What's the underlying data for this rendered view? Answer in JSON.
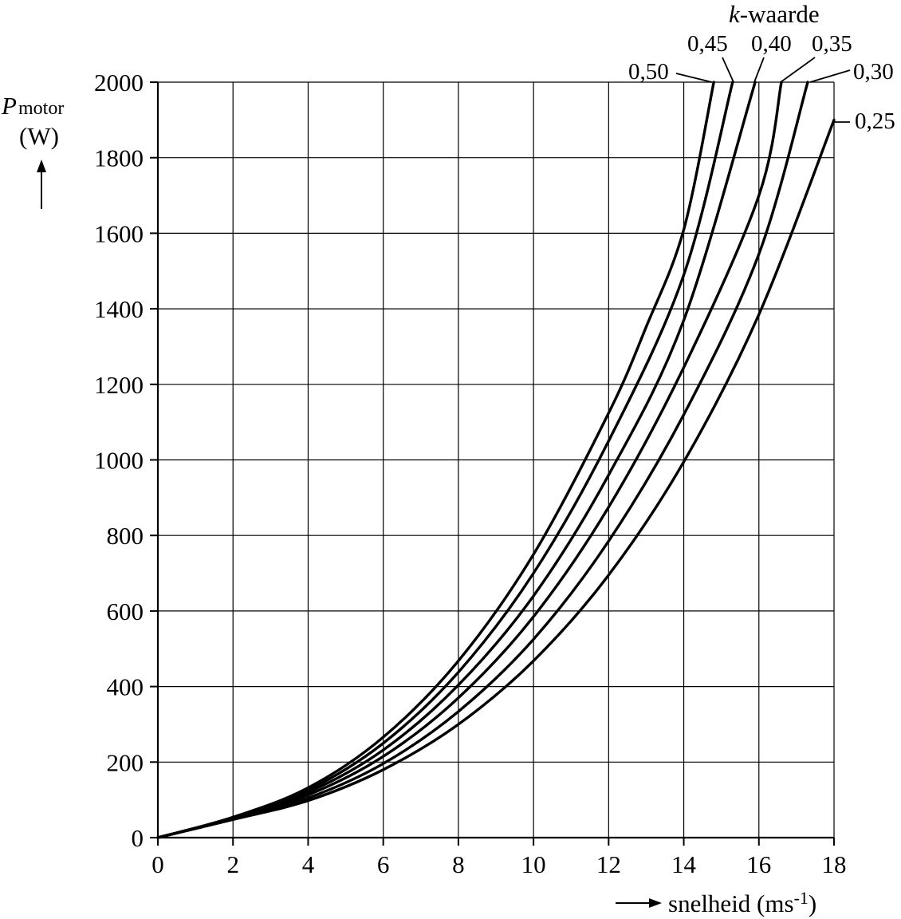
{
  "chart_data": {
    "type": "line",
    "title": "",
    "xlabel": "snelheid (ms-1)",
    "xlabel_parts": {
      "main": "snelheid (ms",
      "exp": "-1",
      "close": ")"
    },
    "ylabel": "Pmotor (W)",
    "ylabel_parts": {
      "symbol": "P",
      "subscript": "motor",
      "unit": "(W)"
    },
    "legend_title": "k-waarde",
    "legend_title_parts": {
      "italic": "k",
      "rest": "-waarde"
    },
    "xlim": [
      0,
      18
    ],
    "ylim": [
      0,
      2000
    ],
    "xticks": [
      0,
      2,
      4,
      6,
      8,
      10,
      12,
      14,
      16,
      18
    ],
    "xtick_labels": [
      "0",
      "2",
      "4",
      "6",
      "8",
      "10",
      "12",
      "14",
      "16",
      "18"
    ],
    "yticks": [
      0,
      200,
      400,
      600,
      800,
      1000,
      1200,
      1400,
      1600,
      1800,
      2000
    ],
    "ytick_labels": [
      "0",
      "200",
      "400",
      "600",
      "800",
      "1000",
      "1200",
      "1400",
      "1600",
      "1800",
      "2000"
    ],
    "grid": true,
    "series": [
      {
        "name": "0,50",
        "k": 0.5,
        "x": [
          0,
          2,
          4,
          6,
          8,
          10,
          12,
          13,
          14,
          14.8
        ],
        "y": [
          0,
          54,
          132,
          266,
          468,
          750,
          1124,
          1352,
          1610,
          2000
        ]
      },
      {
        "name": "0,45",
        "k": 0.45,
        "x": [
          0,
          2,
          4,
          6,
          8,
          10,
          12,
          14,
          15.3
        ],
        "y": [
          0,
          53,
          126,
          250,
          438,
          700,
          1050,
          1490,
          2000
        ]
      },
      {
        "name": "0,40",
        "k": 0.4,
        "x": [
          0,
          2,
          4,
          6,
          8,
          10,
          12,
          14,
          15.9
        ],
        "y": [
          0,
          52,
          120,
          232,
          404,
          640,
          960,
          1370,
          2000
        ]
      },
      {
        "name": "0,35",
        "k": 0.35,
        "x": [
          0,
          2,
          4,
          6,
          8,
          10,
          12,
          14,
          16,
          16.6
        ],
        "y": [
          0,
          51,
          113,
          215,
          370,
          585,
          875,
          1245,
          1700,
          2000
        ]
      },
      {
        "name": "0,30",
        "k": 0.3,
        "x": [
          0,
          2,
          4,
          6,
          8,
          10,
          12,
          14,
          16,
          17.3
        ],
        "y": [
          0,
          49,
          105,
          196,
          334,
          525,
          785,
          1120,
          1545,
          2000
        ]
      },
      {
        "name": "0,25",
        "k": 0.25,
        "x": [
          0,
          2,
          4,
          6,
          8,
          10,
          12,
          14,
          16,
          18
        ],
        "y": [
          0,
          48,
          98,
          180,
          300,
          468,
          695,
          995,
          1385,
          1900
        ]
      }
    ]
  }
}
